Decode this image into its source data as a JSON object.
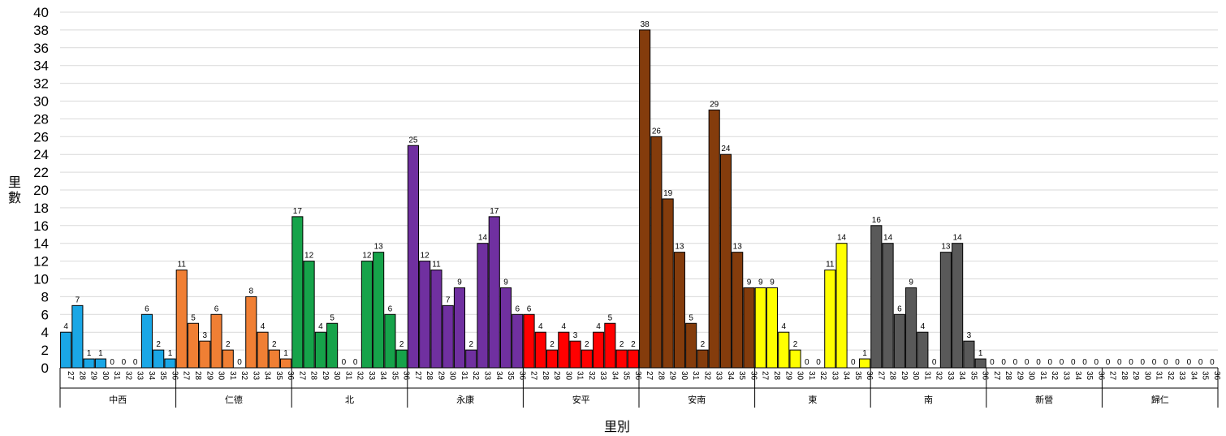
{
  "chart_data": {
    "type": "bar",
    "title": "",
    "xlabel": "里別",
    "ylabel": "里數",
    "ylim": [
      0,
      40
    ],
    "ytick_step": 2,
    "grid": true,
    "subcategories": [
      "27",
      "28",
      "29",
      "30",
      "31",
      "32",
      "33",
      "34",
      "35",
      "36"
    ],
    "groups": [
      {
        "name": "中西",
        "color": "#1aa7e6",
        "values": [
          4,
          7,
          1,
          1,
          0,
          0,
          0,
          6,
          2,
          1
        ]
      },
      {
        "name": "仁德",
        "color": "#f07f34",
        "values": [
          11,
          5,
          3,
          6,
          2,
          0,
          8,
          4,
          2,
          1
        ]
      },
      {
        "name": "北",
        "color": "#16a34a",
        "values": [
          17,
          12,
          4,
          5,
          0,
          0,
          12,
          13,
          6,
          2
        ]
      },
      {
        "name": "永康",
        "color": "#7030a0",
        "values": [
          25,
          12,
          11,
          7,
          9,
          2,
          14,
          17,
          9,
          6
        ]
      },
      {
        "name": "安平",
        "color": "#ff0000",
        "values": [
          6,
          4,
          2,
          4,
          3,
          2,
          4,
          5,
          2,
          2
        ]
      },
      {
        "name": "安南",
        "color": "#843c0c",
        "values": [
          38,
          26,
          19,
          13,
          5,
          2,
          29,
          24,
          13,
          9
        ]
      },
      {
        "name": "東",
        "color": "#ffff00",
        "values": [
          9,
          9,
          4,
          2,
          0,
          0,
          11,
          14,
          0,
          1
        ]
      },
      {
        "name": "南",
        "color": "#595959",
        "values": [
          16,
          14,
          6,
          9,
          4,
          0,
          13,
          14,
          3,
          1
        ]
      },
      {
        "name": "新營",
        "color": "#808080",
        "values": [
          0,
          0,
          0,
          0,
          0,
          0,
          0,
          0,
          0,
          0
        ]
      },
      {
        "name": "歸仁",
        "color": "#808080",
        "values": [
          0,
          0,
          0,
          0,
          0,
          0,
          0,
          0,
          0,
          0
        ]
      }
    ]
  }
}
